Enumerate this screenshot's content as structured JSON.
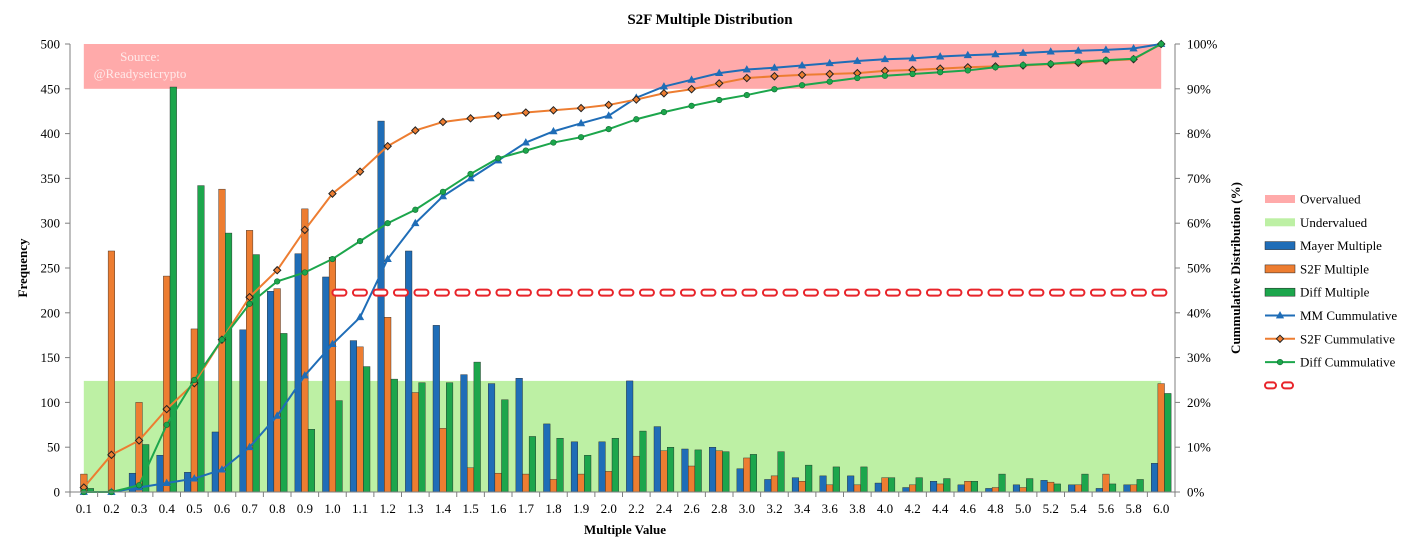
{
  "chart_data": {
    "type": "bar",
    "title": "S2F Multiple Distribution",
    "source_note": [
      "Source:",
      "@Readyseicrypto"
    ],
    "xlabel": "Multiple Value",
    "ylabel": "Frequency",
    "y2label": "Cummulative Distribution (%)",
    "ylim": [
      0,
      500
    ],
    "y2lim": [
      0,
      100
    ],
    "yticks": [
      "0",
      "50",
      "100",
      "150",
      "200",
      "250",
      "300",
      "350",
      "400",
      "450",
      "500"
    ],
    "y2ticks": [
      "0%",
      "10%",
      "20%",
      "30%",
      "40%",
      "50%",
      "60%",
      "70%",
      "80%",
      "90%",
      "100%"
    ],
    "categories": [
      "0.1",
      "0.2",
      "0.3",
      "0.4",
      "0.5",
      "0.6",
      "0.7",
      "0.8",
      "0.9",
      "1.0",
      "1.1",
      "1.2",
      "1.3",
      "1.4",
      "1.5",
      "1.6",
      "1.7",
      "1.8",
      "1.9",
      "2.0",
      "2.2",
      "2.4",
      "2.6",
      "2.8",
      "3.0",
      "3.2",
      "3.4",
      "3.6",
      "3.8",
      "4.0",
      "4.2",
      "4.4",
      "4.6",
      "4.8",
      "5.0",
      "5.2",
      "5.4",
      "5.6",
      "5.8",
      "6.0"
    ],
    "bands": [
      {
        "name": "Overvalued",
        "color": "#ffaaaa",
        "y_from": 450,
        "y_to": 500,
        "x_from": "0.1",
        "x_to": "6.0"
      },
      {
        "name": "Undervalued",
        "color": "#bdf0a4",
        "y_from": 0,
        "y_to": 124,
        "x_from": "0.1",
        "x_to": "6.0"
      }
    ],
    "bar_series": [
      {
        "name": "Mayer Multiple",
        "color": "#1f6db7",
        "values": [
          0,
          0,
          21,
          41,
          22,
          67,
          181,
          224,
          266,
          240,
          169,
          414,
          269,
          186,
          131,
          121,
          127,
          76,
          56,
          56,
          124,
          73,
          48,
          50,
          26,
          14,
          16,
          18,
          18,
          10,
          5,
          12,
          8,
          4,
          8,
          13,
          8,
          4,
          8,
          32
        ]
      },
      {
        "name": "S2F Multiple",
        "color": "#ed7d31",
        "values": [
          20,
          269,
          100,
          241,
          182,
          338,
          292,
          227,
          316,
          262,
          162,
          195,
          111,
          71,
          27,
          21,
          20,
          14,
          20,
          23,
          40,
          46,
          29,
          46,
          38,
          18,
          12,
          8,
          8,
          16,
          8,
          9,
          12,
          5,
          5,
          11,
          8,
          20,
          8,
          121
        ]
      },
      {
        "name": "Diff Multiple",
        "color": "#1ca64c",
        "values": [
          4,
          0,
          53,
          452,
          342,
          289,
          265,
          177,
          70,
          102,
          140,
          126,
          122,
          122,
          145,
          103,
          62,
          60,
          41,
          60,
          68,
          50,
          47,
          45,
          42,
          45,
          30,
          28,
          28,
          16,
          16,
          15,
          12,
          20,
          15,
          9,
          20,
          9,
          14,
          110
        ]
      }
    ],
    "line_series": [
      {
        "name": "MM Cummulative",
        "color": "#1f6db7",
        "marker": "triangle",
        "values": [
          0,
          0,
          1,
          2,
          3,
          5,
          10,
          17,
          26,
          33,
          39,
          52,
          60,
          66,
          70,
          74,
          78,
          80.5,
          82.3,
          84,
          88,
          90.5,
          92,
          93.5,
          94.3,
          94.7,
          95.2,
          95.7,
          96.2,
          96.6,
          96.8,
          97.2,
          97.5,
          97.7,
          98,
          98.3,
          98.5,
          98.7,
          99,
          100
        ]
      },
      {
        "name": "S2F Cummulative",
        "color": "#ed7d31",
        "marker": "diamond",
        "values": [
          1,
          8.3,
          11.5,
          18.5,
          24.3,
          34,
          43.5,
          49.5,
          58.5,
          66.6,
          71.5,
          77.2,
          80.7,
          82.6,
          83.4,
          84,
          84.7,
          85.2,
          85.7,
          86.4,
          87.6,
          89,
          89.9,
          91.2,
          92.4,
          92.8,
          93.1,
          93.3,
          93.5,
          94,
          94.2,
          94.5,
          94.8,
          95,
          95.2,
          95.5,
          95.8,
          96.3,
          96.6,
          100
        ]
      },
      {
        "name": "Diff Cummulative",
        "color": "#1ca64c",
        "marker": "circle",
        "values": [
          0,
          0,
          1.5,
          15,
          25,
          34,
          42,
          47,
          49,
          52,
          56,
          60,
          63,
          67,
          71,
          74.5,
          76.2,
          78,
          79.2,
          81,
          83.2,
          84.8,
          86.2,
          87.5,
          88.6,
          89.9,
          90.8,
          91.6,
          92.4,
          92.9,
          93.3,
          93.7,
          94.1,
          94.8,
          95.3,
          95.6,
          96,
          96.4,
          96.7,
          100
        ]
      }
    ],
    "median_line": {
      "value": 44.5,
      "color": "#e8242a",
      "x_from": "1.0",
      "x_to": "6.0"
    },
    "legend": [
      {
        "label": "Overvalued",
        "type": "band",
        "color": "#ffaaaa"
      },
      {
        "label": "Undervalued",
        "type": "band",
        "color": "#bdf0a4"
      },
      {
        "label": "Mayer Multiple",
        "type": "bar",
        "color": "#1f6db7"
      },
      {
        "label": "S2F Multiple",
        "type": "bar",
        "color": "#ed7d31"
      },
      {
        "label": "Diff Multiple",
        "type": "bar",
        "color": "#1ca64c"
      },
      {
        "label": "MM Cummulative",
        "type": "line",
        "color": "#1f6db7",
        "marker": "triangle"
      },
      {
        "label": "S2F Cummulative",
        "type": "line",
        "color": "#ed7d31",
        "marker": "diamond"
      },
      {
        "label": "Diff Cummulative",
        "type": "line",
        "color": "#1ca64c",
        "marker": "circle"
      },
      {
        "label": "",
        "type": "dashed",
        "color": "#e8242a"
      }
    ],
    "legend_position": "right",
    "grid": false
  }
}
